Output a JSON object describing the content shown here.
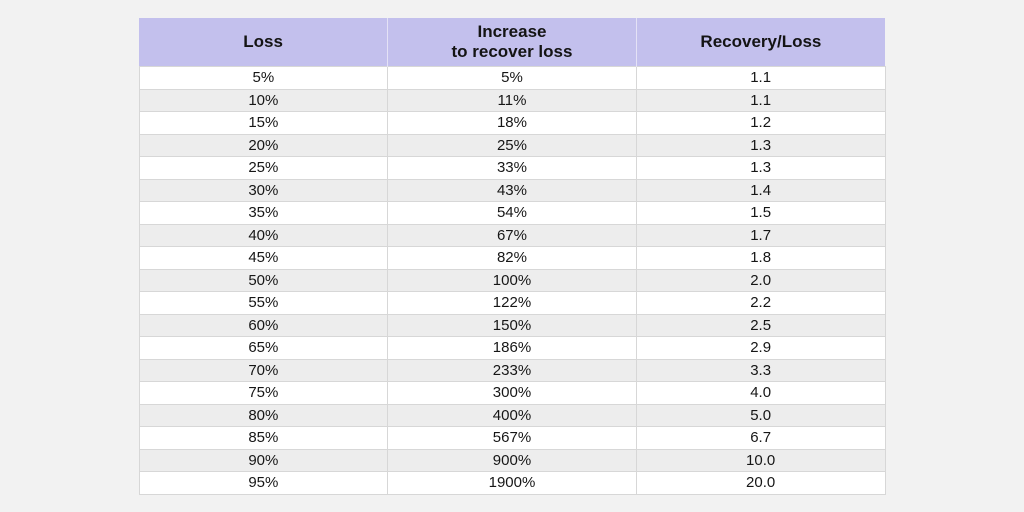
{
  "page": {
    "background_color": "#f2f2f2"
  },
  "table": {
    "header": {
      "col_loss": "Loss",
      "col_increase": "Increase\nto recover loss",
      "col_ratio": "Recovery/Loss"
    },
    "colors": {
      "header_bg": "#c3c0ed",
      "stripe_bg": "#ededed",
      "row_bg": "#ffffff",
      "grid_line": "#d7d7d7",
      "text": "#161616"
    }
  },
  "chart_data": {
    "type": "table",
    "title": "",
    "columns": [
      "Loss",
      "Increase to recover loss",
      "Recovery/Loss"
    ],
    "rows": [
      {
        "loss": "5%",
        "increase": "5%",
        "ratio": "1.1"
      },
      {
        "loss": "10%",
        "increase": "11%",
        "ratio": "1.1"
      },
      {
        "loss": "15%",
        "increase": "18%",
        "ratio": "1.2"
      },
      {
        "loss": "20%",
        "increase": "25%",
        "ratio": "1.3"
      },
      {
        "loss": "25%",
        "increase": "33%",
        "ratio": "1.3"
      },
      {
        "loss": "30%",
        "increase": "43%",
        "ratio": "1.4"
      },
      {
        "loss": "35%",
        "increase": "54%",
        "ratio": "1.5"
      },
      {
        "loss": "40%",
        "increase": "67%",
        "ratio": "1.7"
      },
      {
        "loss": "45%",
        "increase": "82%",
        "ratio": "1.8"
      },
      {
        "loss": "50%",
        "increase": "100%",
        "ratio": "2.0"
      },
      {
        "loss": "55%",
        "increase": "122%",
        "ratio": "2.2"
      },
      {
        "loss": "60%",
        "increase": "150%",
        "ratio": "2.5"
      },
      {
        "loss": "65%",
        "increase": "186%",
        "ratio": "2.9"
      },
      {
        "loss": "70%",
        "increase": "233%",
        "ratio": "3.3"
      },
      {
        "loss": "75%",
        "increase": "300%",
        "ratio": "4.0"
      },
      {
        "loss": "80%",
        "increase": "400%",
        "ratio": "5.0"
      },
      {
        "loss": "85%",
        "increase": "567%",
        "ratio": "6.7"
      },
      {
        "loss": "90%",
        "increase": "900%",
        "ratio": "10.0"
      },
      {
        "loss": "95%",
        "increase": "1900%",
        "ratio": "20.0"
      }
    ]
  }
}
